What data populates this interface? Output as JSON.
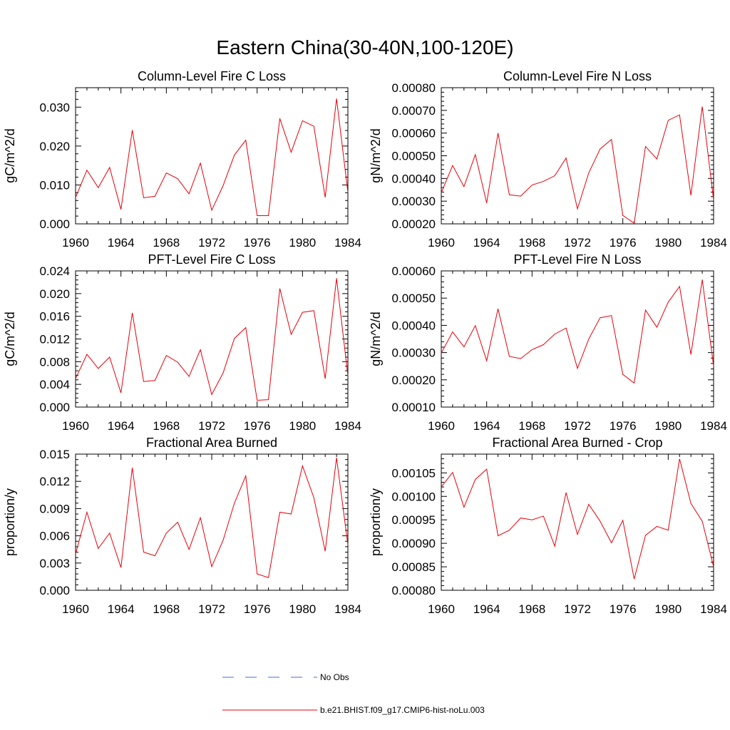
{
  "figure": {
    "title": "Eastern China(30-40N,100-120E)",
    "legend": [
      {
        "label": "No Obs",
        "style": "dashed",
        "color": "#4a6ad8"
      },
      {
        "label": "b.e21.BHIST.f09_g17.CMIP6-hist-noLu.003",
        "style": "solid",
        "color": "#e8000b"
      }
    ]
  },
  "chart_data": [
    {
      "type": "line",
      "title": "Column-Level Fire C Loss",
      "ylabel": "gC/m^2/d",
      "xlim": [
        1960,
        1984
      ],
      "ylim": [
        0,
        0.035
      ],
      "xticks": [
        "1960",
        "1964",
        "1968",
        "1972",
        "1976",
        "1980",
        "1984"
      ],
      "yticks": [
        "0.000",
        "0.010",
        "0.020",
        "0.030"
      ],
      "x": [
        1960,
        1961,
        1962,
        1963,
        1964,
        1965,
        1966,
        1967,
        1968,
        1969,
        1970,
        1971,
        1972,
        1973,
        1974,
        1975,
        1976,
        1977,
        1978,
        1979,
        1980,
        1981,
        1982,
        1983,
        1984
      ],
      "series": [
        {
          "name": "b.e21.BHIST.f09_g17.CMIP6-hist-noLu.003",
          "color": "#e8000b",
          "values": [
            0.0068,
            0.0138,
            0.0093,
            0.0145,
            0.0037,
            0.0241,
            0.0067,
            0.0071,
            0.0131,
            0.0116,
            0.0077,
            0.0156,
            0.0035,
            0.0098,
            0.0177,
            0.0215,
            0.0021,
            0.0021,
            0.0271,
            0.0184,
            0.0265,
            0.0251,
            0.0068,
            0.0322,
            0.0081
          ]
        }
      ]
    },
    {
      "type": "line",
      "title": "Column-Level Fire N Loss",
      "ylabel": "gN/m^2/d",
      "xlim": [
        1960,
        1984
      ],
      "ylim": [
        0.0002,
        0.0008
      ],
      "xticks": [
        "1960",
        "1964",
        "1968",
        "1972",
        "1976",
        "1980",
        "1984"
      ],
      "yticks": [
        "0.00020",
        "0.00030",
        "0.00040",
        "0.00050",
        "0.00060",
        "0.00070",
        "0.00080"
      ],
      "x": [
        1960,
        1961,
        1962,
        1963,
        1964,
        1965,
        1966,
        1967,
        1968,
        1969,
        1970,
        1971,
        1972,
        1973,
        1974,
        1975,
        1976,
        1977,
        1978,
        1979,
        1980,
        1981,
        1982,
        1983,
        1984
      ],
      "series": [
        {
          "name": "b.e21.BHIST.f09_g17.CMIP6-hist-noLu.003",
          "color": "#e8000b",
          "values": [
            0.000337,
            0.000457,
            0.000364,
            0.000505,
            0.000292,
            0.0006,
            0.000328,
            0.000322,
            0.000371,
            0.000387,
            0.000412,
            0.00049,
            0.000266,
            0.000425,
            0.00053,
            0.000572,
            0.000237,
            0.000203,
            0.000541,
            0.000486,
            0.000656,
            0.00068,
            0.000326,
            0.000717,
            0.000305
          ]
        }
      ]
    },
    {
      "type": "line",
      "title": "PFT-Level Fire C Loss",
      "ylabel": "gC/m^2/d",
      "xlim": [
        1960,
        1984
      ],
      "ylim": [
        0,
        0.024
      ],
      "xticks": [
        "1960",
        "1964",
        "1968",
        "1972",
        "1976",
        "1980",
        "1984"
      ],
      "yticks": [
        "0.000",
        "0.004",
        "0.008",
        "0.012",
        "0.016",
        "0.020",
        "0.024"
      ],
      "x": [
        1960,
        1961,
        1962,
        1963,
        1964,
        1965,
        1966,
        1967,
        1968,
        1969,
        1970,
        1971,
        1972,
        1973,
        1974,
        1975,
        1976,
        1977,
        1978,
        1979,
        1980,
        1981,
        1982,
        1983,
        1984
      ],
      "series": [
        {
          "name": "b.e21.BHIST.f09_g17.CMIP6-hist-noLu.003",
          "color": "#e8000b",
          "values": [
            0.005,
            0.0093,
            0.0068,
            0.0088,
            0.0025,
            0.0166,
            0.0045,
            0.0047,
            0.0091,
            0.0079,
            0.0054,
            0.0101,
            0.0022,
            0.006,
            0.0121,
            0.014,
            0.0012,
            0.0013,
            0.0209,
            0.0128,
            0.0167,
            0.017,
            0.005,
            0.0227,
            0.0055
          ]
        }
      ]
    },
    {
      "type": "line",
      "title": "PFT-Level Fire N Loss",
      "ylabel": "gN/m^2/d",
      "xlim": [
        1960,
        1984
      ],
      "ylim": [
        0.0001,
        0.0006
      ],
      "xticks": [
        "1960",
        "1964",
        "1968",
        "1972",
        "1976",
        "1980",
        "1984"
      ],
      "yticks": [
        "0.00010",
        "0.00020",
        "0.00030",
        "0.00040",
        "0.00050",
        "0.00060"
      ],
      "x": [
        1960,
        1961,
        1962,
        1963,
        1964,
        1965,
        1966,
        1967,
        1968,
        1969,
        1970,
        1971,
        1972,
        1973,
        1974,
        1975,
        1976,
        1977,
        1978,
        1979,
        1980,
        1981,
        1982,
        1983,
        1984
      ],
      "series": [
        {
          "name": "b.e21.BHIST.f09_g17.CMIP6-hist-noLu.003",
          "color": "#e8000b",
          "values": [
            0.000298,
            0.000376,
            0.000321,
            0.000399,
            0.00027,
            0.000461,
            0.000286,
            0.000278,
            0.000311,
            0.000329,
            0.000368,
            0.00039,
            0.000242,
            0.00035,
            0.000428,
            0.000436,
            0.00022,
            0.000188,
            0.000456,
            0.000393,
            0.000485,
            0.000543,
            0.000293,
            0.000568,
            0.00025
          ]
        }
      ]
    },
    {
      "type": "line",
      "title": "Fractional Area Burned",
      "ylabel": "proportion/y",
      "xlim": [
        1960,
        1984
      ],
      "ylim": [
        0,
        0.015
      ],
      "xticks": [
        "1960",
        "1964",
        "1968",
        "1972",
        "1976",
        "1980",
        "1984"
      ],
      "yticks": [
        "0.000",
        "0.003",
        "0.006",
        "0.009",
        "0.012",
        "0.015"
      ],
      "x": [
        1960,
        1961,
        1962,
        1963,
        1964,
        1965,
        1966,
        1967,
        1968,
        1969,
        1970,
        1971,
        1972,
        1973,
        1974,
        1975,
        1976,
        1977,
        1978,
        1979,
        1980,
        1981,
        1982,
        1983,
        1984
      ],
      "series": [
        {
          "name": "b.e21.BHIST.f09_g17.CMIP6-hist-noLu.003",
          "color": "#e8000b",
          "values": [
            0.004,
            0.0086,
            0.0046,
            0.0063,
            0.0025,
            0.0135,
            0.0042,
            0.0038,
            0.0063,
            0.0075,
            0.0045,
            0.008,
            0.0026,
            0.0055,
            0.0096,
            0.0126,
            0.0018,
            0.0014,
            0.0086,
            0.0084,
            0.0137,
            0.0102,
            0.0043,
            0.0146,
            0.005
          ]
        }
      ]
    },
    {
      "type": "line",
      "title": "Fractional Area Burned - Crop",
      "ylabel": "proportion/y",
      "xlim": [
        1960,
        1984
      ],
      "ylim": [
        0.0008,
        0.00109
      ],
      "xticks": [
        "1960",
        "1964",
        "1968",
        "1972",
        "1976",
        "1980",
        "1984"
      ],
      "yticks": [
        "0.00080",
        "0.00085",
        "0.00090",
        "0.00095",
        "0.00100",
        "0.00105"
      ],
      "x": [
        1960,
        1961,
        1962,
        1963,
        1964,
        1965,
        1966,
        1967,
        1968,
        1969,
        1970,
        1971,
        1972,
        1973,
        1974,
        1975,
        1976,
        1977,
        1978,
        1979,
        1980,
        1981,
        1982,
        1983,
        1984
      ],
      "series": [
        {
          "name": "b.e21.BHIST.f09_g17.CMIP6-hist-noLu.003",
          "color": "#e8000b",
          "values": [
            0.00102,
            0.001051,
            0.000977,
            0.001036,
            0.001058,
            0.000916,
            0.000928,
            0.000954,
            0.00095,
            0.000958,
            0.000894,
            0.001008,
            0.000919,
            0.000983,
            0.000947,
            0.000901,
            0.000949,
            0.000824,
            0.000917,
            0.000936,
            0.000928,
            0.00108,
            0.000985,
            0.000947,
            0.00085
          ]
        }
      ]
    }
  ]
}
